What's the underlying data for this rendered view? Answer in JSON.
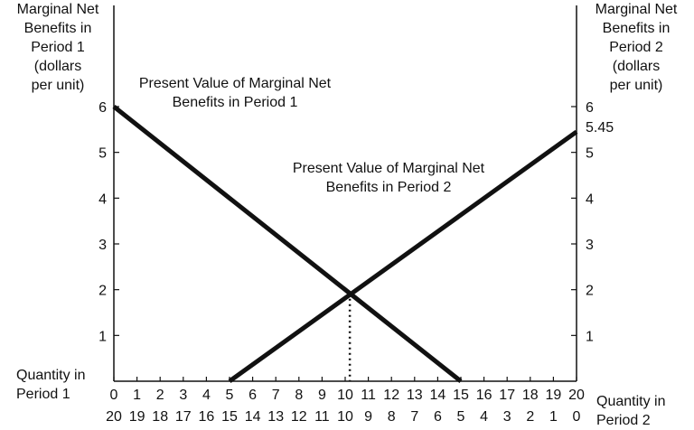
{
  "chart_data": {
    "type": "line",
    "left_axis_label": [
      "Marginal Net",
      "Benefits in",
      "Period 1",
      "(dollars",
      "per unit)"
    ],
    "right_axis_label": [
      "Marginal Net",
      "Benefits in",
      "Period 2",
      "(dollars",
      "per unit)"
    ],
    "x_label_top": [
      "Quantity in",
      "Period 1"
    ],
    "x_label_bottom": [
      "Quantity in",
      "Period 2"
    ],
    "x_ticks_period1": [
      "0",
      "1",
      "2",
      "3",
      "4",
      "5",
      "6",
      "7",
      "8",
      "9",
      "10",
      "11",
      "12",
      "13",
      "14",
      "15",
      "16",
      "17",
      "18",
      "19",
      "20"
    ],
    "x_ticks_period2": [
      "20",
      "19",
      "18",
      "17",
      "16",
      "15",
      "14",
      "13",
      "12",
      "11",
      "10",
      "9",
      "8",
      "7",
      "6",
      "5",
      "4",
      "3",
      "2",
      "1",
      "0"
    ],
    "y_ticks": [
      "1",
      "2",
      "3",
      "4",
      "5",
      "6"
    ],
    "right_extra_tick": "5.45",
    "xlim": [
      0,
      20
    ],
    "ylim": [
      0,
      6
    ],
    "series": [
      {
        "name": "Present Value of Marginal Net Benefits in Period 1",
        "x": [
          0,
          15
        ],
        "y": [
          6,
          0
        ]
      },
      {
        "name": "Present Value of Marginal Net Benefits in Period 2",
        "x": [
          5,
          20
        ],
        "y": [
          0,
          5.45
        ]
      }
    ],
    "annotations": [
      {
        "text": [
          "Present Value of Marginal Net",
          "Benefits in Period 1"
        ]
      },
      {
        "text": [
          "Present Value of Marginal Net",
          "Benefits in Period 2"
        ]
      }
    ],
    "intersection": {
      "x": 10.2,
      "y": 1.92
    }
  }
}
